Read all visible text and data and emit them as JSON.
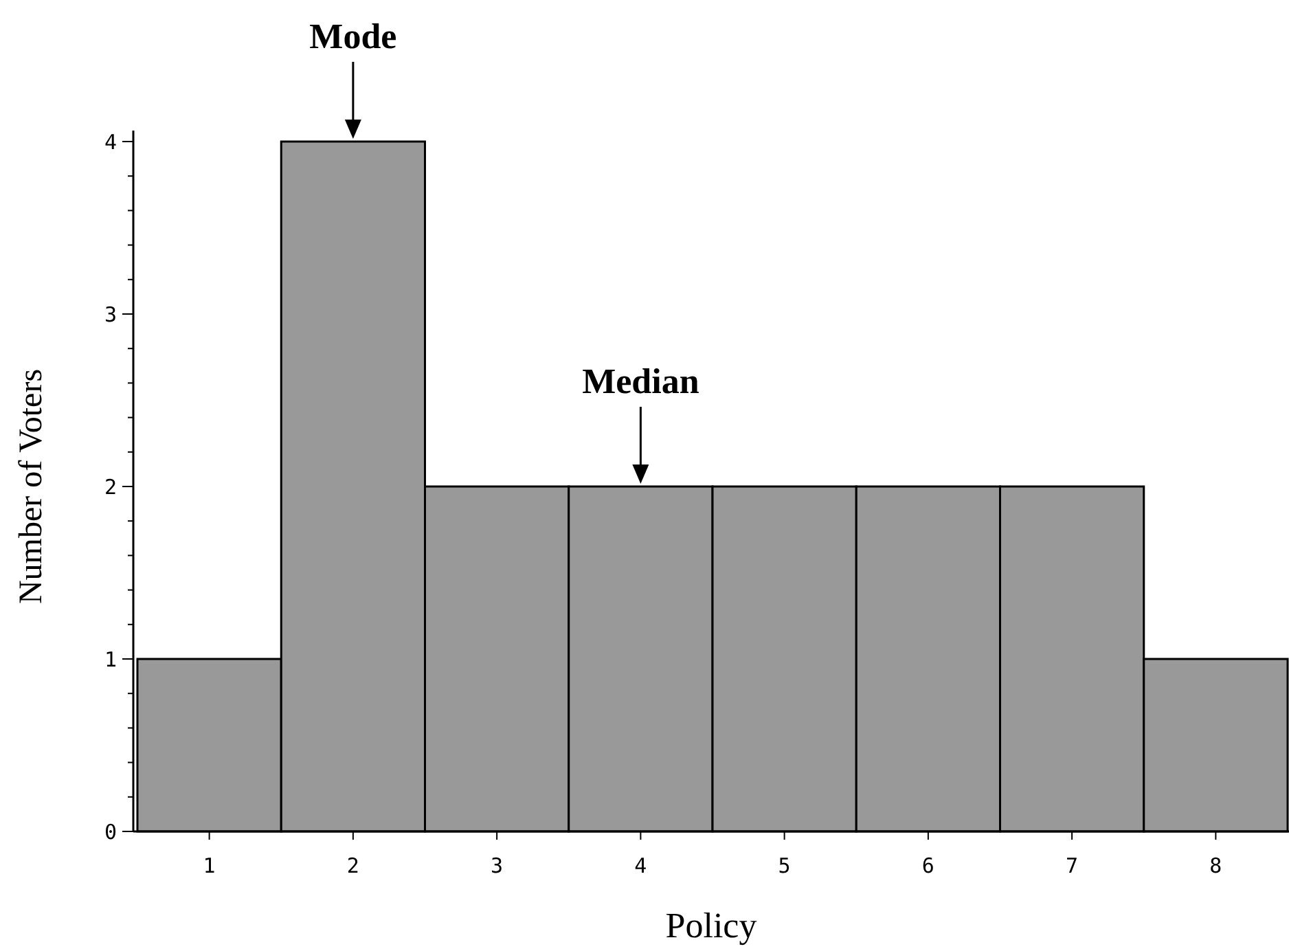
{
  "chart_data": {
    "type": "bar",
    "xlabel": "Policy",
    "ylabel": "Number of Voters",
    "categories": [
      "1",
      "2",
      "3",
      "4",
      "5",
      "6",
      "7",
      "8"
    ],
    "values": [
      1,
      4,
      2,
      2,
      2,
      2,
      2,
      1
    ],
    "color": "#999999",
    "ylim": [
      0,
      4
    ],
    "yticks": [
      0,
      {
        "value": 0.2,
        "label": null
      },
      {
        "value": 0.4,
        "label": null
      },
      {
        "value": 0.6,
        "label": null
      },
      {
        "value": 0.8,
        "label": null
      },
      1,
      {
        "value": 1.2,
        "label": null
      },
      {
        "value": 1.4,
        "label": null
      },
      {
        "value": 1.6,
        "label": null
      },
      {
        "value": 1.8,
        "label": null
      },
      2,
      {
        "value": 2.2,
        "label": null
      },
      {
        "value": 2.4,
        "label": null
      },
      {
        "value": 2.6,
        "label": null
      },
      {
        "value": 2.8,
        "label": null
      },
      3,
      {
        "value": 3.2,
        "label": null
      },
      {
        "value": 3.4,
        "label": null
      },
      {
        "value": 3.6,
        "label": null
      },
      {
        "value": 3.8,
        "label": null
      },
      4
    ],
    "annotations": [
      {
        "text": "Mode",
        "x": "2",
        "y": 4
      },
      {
        "text": "Median",
        "x": "4",
        "y": 2
      }
    ]
  }
}
